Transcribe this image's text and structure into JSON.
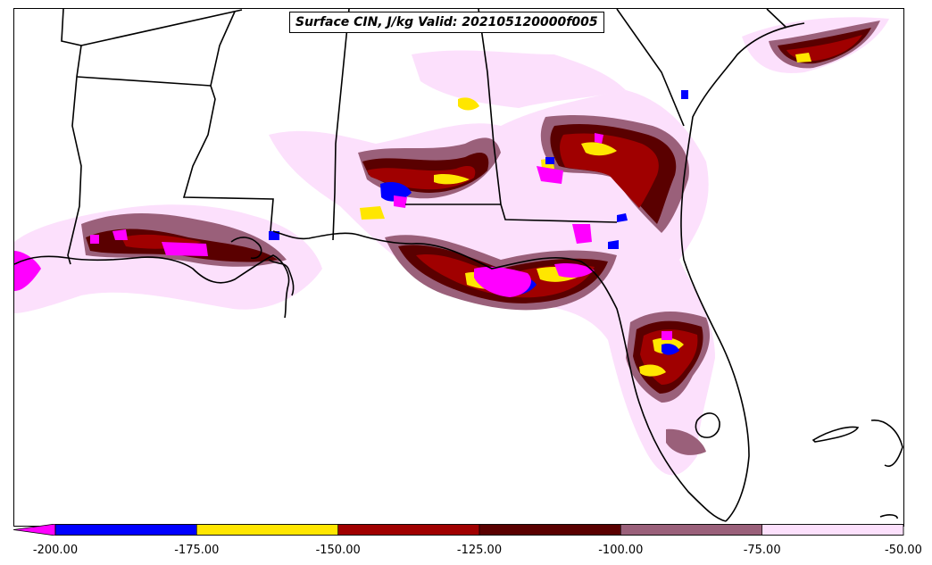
{
  "title": "Surface CIN, J/kg Valid: 202105120000f005",
  "colorbar": {
    "ticks": [
      "-200.00",
      "-175.00",
      "-150.00",
      "-125.00",
      "-100.00",
      "-75.00",
      "-50.00"
    ],
    "colors": [
      "#0000ff",
      "#ffe600",
      "#a00000",
      "#5a0000",
      "#9a607a",
      "#fce0fc"
    ],
    "extend_low_color": "#ff00ff"
  },
  "fill_colors": {
    "lt_-200": "#ff00ff",
    "-200_-175": "#0000ff",
    "-175_-150": "#ffe600",
    "-150_-125": "#a00000",
    "-125_-100": "#5a0000",
    "-100_-75": "#9a607a",
    "-75_-50": "#fce0fc"
  }
}
